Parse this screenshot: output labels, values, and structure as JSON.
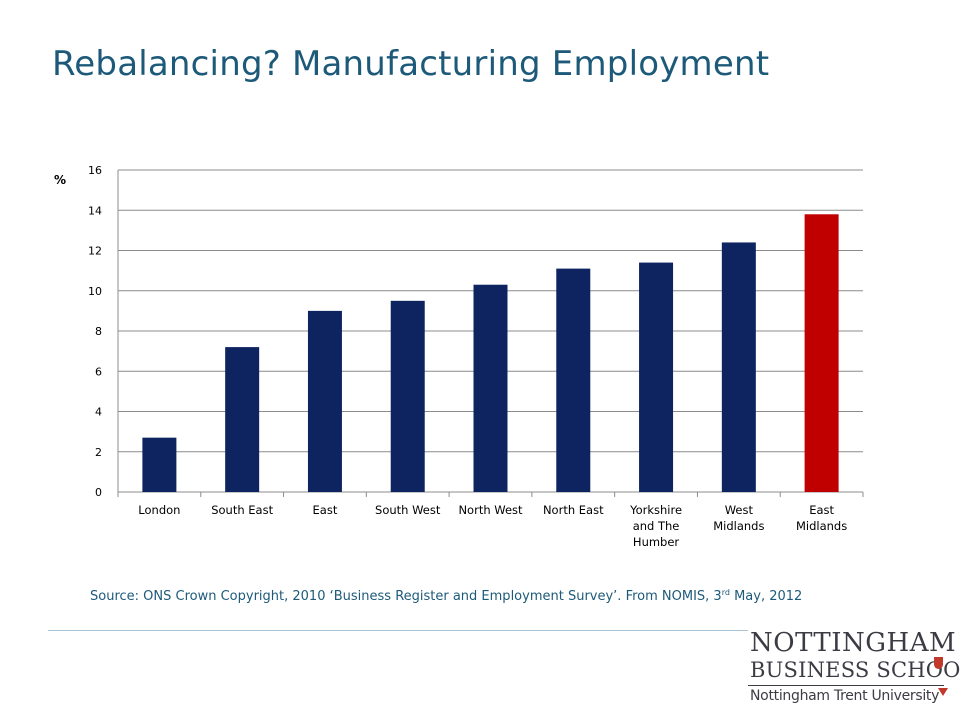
{
  "slide": {
    "title": "Rebalancing? Manufacturing Employment",
    "source_main": "Source: ONS Crown Copyright, 2010 ‘Business Register and Employment Survey’.  From NOMIS, 3",
    "source_sup": "rd",
    "source_tail": " May, 2012"
  },
  "logo": {
    "line1": "NOTTINGHAM",
    "line2": "BUSINESS SCHOOL",
    "line3": "Nottingham Trent University"
  },
  "chart_data": {
    "type": "bar",
    "ylabel": "%",
    "ylim": [
      0,
      16
    ],
    "yticks": [
      0,
      2,
      4,
      6,
      8,
      10,
      12,
      14,
      16
    ],
    "grid": true,
    "categories": [
      [
        "London"
      ],
      [
        "South East"
      ],
      [
        "East"
      ],
      [
        "South West"
      ],
      [
        "North West"
      ],
      [
        "North East"
      ],
      [
        "Yorkshire",
        "and The",
        "Humber"
      ],
      [
        "West",
        "Midlands"
      ],
      [
        "East",
        "Midlands"
      ]
    ],
    "values": [
      2.7,
      7.2,
      9.0,
      9.5,
      10.3,
      11.1,
      11.4,
      12.4,
      13.8
    ],
    "colors": [
      "#0d2461",
      "#0d2461",
      "#0d2461",
      "#0d2461",
      "#0d2461",
      "#0d2461",
      "#0d2461",
      "#0d2461",
      "#c00000"
    ]
  }
}
